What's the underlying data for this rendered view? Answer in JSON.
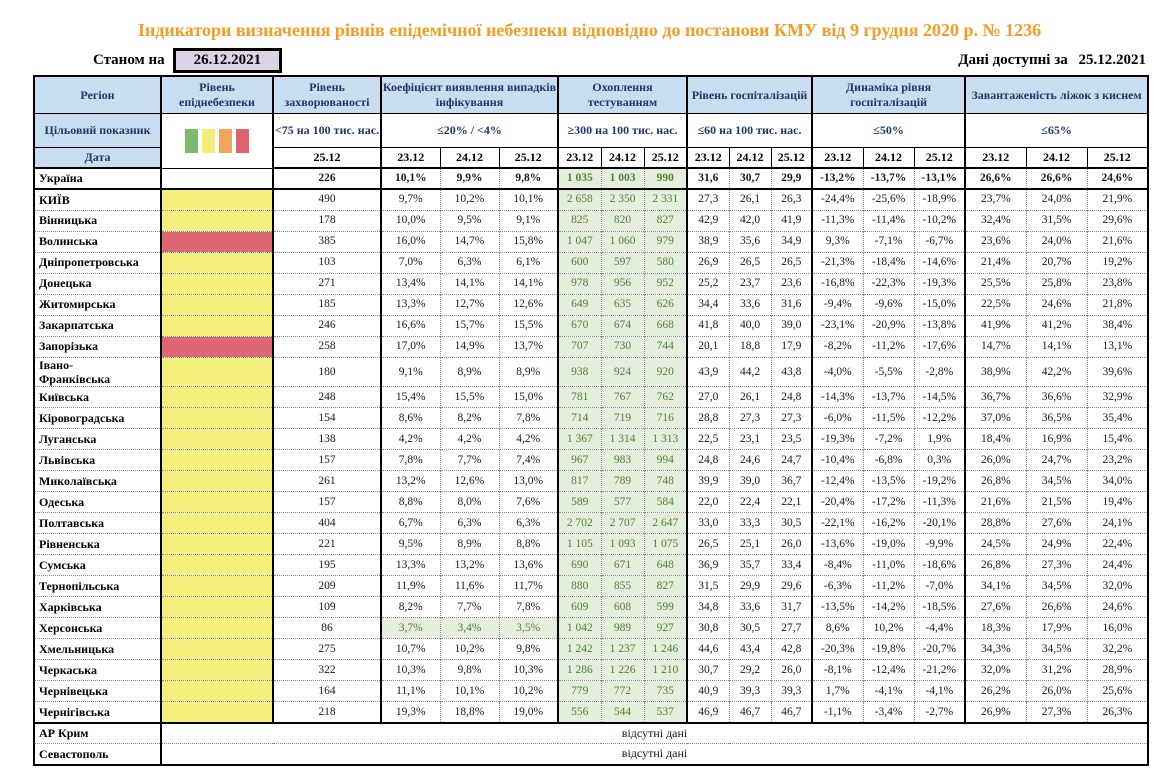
{
  "title": "Індикатори визначення рівнів епідемічної небезпеки відповідно до постанови КМУ від 9 грудня 2020 р. № 1236",
  "as_of": {
    "label": "Станом на",
    "date": "26.12.2021"
  },
  "available": {
    "label": "Дані доступні за",
    "date": "25.12.2021"
  },
  "no_data_text": "відсутні дані",
  "colors": {
    "title_orange": "#F79B22",
    "header_bg": "#c9ddf0",
    "header_text": "#1f3864",
    "asof_bg": "#dcd3e8",
    "yellow": "#f5f07c",
    "red": "#dd6672",
    "green_bg": "#e4eedd",
    "green_text": "#538135",
    "legend": [
      "#7cba6d",
      "#f3ee7a",
      "#f2a45f",
      "#dd636e"
    ]
  },
  "header": {
    "region": "Регіон",
    "danger_level": "Рівень епіднебезпеки",
    "target_row_label": "Цільовий показник",
    "date_row_label": "Дата",
    "groups": [
      {
        "id": "incidence",
        "key": "incidence",
        "label": "Рівень захворюваності",
        "target": "<75 на 100 тис. нас.",
        "dates": [
          "25.12"
        ]
      },
      {
        "id": "detection",
        "key": "detection",
        "label": "Коефіцієнт виявлення випадків інфікування",
        "target": "≤20% / <4%",
        "dates": [
          "23.12",
          "24.12",
          "25.12"
        ]
      },
      {
        "id": "testing",
        "key": "testing",
        "label": "Охоплення тестуванням",
        "target": "≥300 на 100 тис. нас.",
        "dates": [
          "23.12",
          "24.12",
          "25.12"
        ]
      },
      {
        "id": "hosp",
        "key": "hosp",
        "label": "Рівень госпіталізацій",
        "target": "≤60 на 100 тис. нас.",
        "dates": [
          "23.12",
          "24.12",
          "25.12"
        ]
      },
      {
        "id": "hosp-dyn",
        "key": "hosp_dyn",
        "label": "Динаміка рівня госпіталізацій",
        "target": "≤50%",
        "dates": [
          "23.12",
          "24.12",
          "25.12"
        ]
      },
      {
        "id": "oxygen",
        "key": "oxygen",
        "label": "Завантаженість ліжок з киснем",
        "target": "≤65%",
        "dates": [
          "23.12",
          "24.12",
          "25.12"
        ]
      }
    ]
  },
  "rows": [
    {
      "region": "Україна",
      "danger": "none",
      "bold": true,
      "incidence": "226",
      "detection": [
        "10,1%",
        "9,9%",
        "9,8%"
      ],
      "testing": [
        "1 035",
        "1 003",
        "990"
      ],
      "hosp": [
        "31,6",
        "30,7",
        "29,9"
      ],
      "hosp_dyn": [
        "-13,2%",
        "-13,7%",
        "-13,1%"
      ],
      "oxygen": [
        "26,6%",
        "26,6%",
        "24,6%"
      ]
    },
    {
      "region": "КИЇВ",
      "danger": "yellow",
      "incidence": "490",
      "detection": [
        "9,7%",
        "10,2%",
        "10,1%"
      ],
      "testing": [
        "2 658",
        "2 350",
        "2 331"
      ],
      "hosp": [
        "27,3",
        "26,1",
        "26,3"
      ],
      "hosp_dyn": [
        "-24,4%",
        "-25,6%",
        "-18,9%"
      ],
      "oxygen": [
        "23,7%",
        "24,0%",
        "21,9%"
      ]
    },
    {
      "region": "Вінницька",
      "danger": "yellow",
      "incidence": "178",
      "detection": [
        "10,0%",
        "9,5%",
        "9,1%"
      ],
      "testing": [
        "825",
        "820",
        "827"
      ],
      "hosp": [
        "42,9",
        "42,0",
        "41,9"
      ],
      "hosp_dyn": [
        "-11,3%",
        "-11,4%",
        "-10,2%"
      ],
      "oxygen": [
        "32,4%",
        "31,5%",
        "29,6%"
      ]
    },
    {
      "region": "Волинська",
      "danger": "red",
      "incidence": "385",
      "detection": [
        "16,0%",
        "14,7%",
        "15,8%"
      ],
      "testing": [
        "1 047",
        "1 060",
        "979"
      ],
      "hosp": [
        "38,9",
        "35,6",
        "34,9"
      ],
      "hosp_dyn": [
        "9,3%",
        "-7,1%",
        "-6,7%"
      ],
      "oxygen": [
        "23,6%",
        "24,0%",
        "21,6%"
      ]
    },
    {
      "region": "Дніпропетровська",
      "danger": "yellow",
      "incidence": "103",
      "detection": [
        "7,0%",
        "6,3%",
        "6,1%"
      ],
      "testing": [
        "600",
        "597",
        "580"
      ],
      "hosp": [
        "26,9",
        "26,5",
        "26,5"
      ],
      "hosp_dyn": [
        "-21,3%",
        "-18,4%",
        "-14,6%"
      ],
      "oxygen": [
        "21,4%",
        "20,7%",
        "19,2%"
      ]
    },
    {
      "region": "Донецька",
      "danger": "yellow",
      "incidence": "271",
      "detection": [
        "13,4%",
        "14,1%",
        "14,1%"
      ],
      "testing": [
        "978",
        "956",
        "952"
      ],
      "hosp": [
        "25,2",
        "23,7",
        "23,6"
      ],
      "hosp_dyn": [
        "-16,8%",
        "-22,3%",
        "-19,3%"
      ],
      "oxygen": [
        "25,5%",
        "25,8%",
        "23,8%"
      ]
    },
    {
      "region": "Житомирська",
      "danger": "yellow",
      "incidence": "185",
      "detection": [
        "13,3%",
        "12,7%",
        "12,6%"
      ],
      "testing": [
        "649",
        "635",
        "626"
      ],
      "hosp": [
        "34,4",
        "33,6",
        "31,6"
      ],
      "hosp_dyn": [
        "-9,4%",
        "-9,6%",
        "-15,0%"
      ],
      "oxygen": [
        "22,5%",
        "24,6%",
        "21,8%"
      ]
    },
    {
      "region": "Закарпатська",
      "danger": "yellow",
      "incidence": "246",
      "detection": [
        "16,6%",
        "15,7%",
        "15,5%"
      ],
      "testing": [
        "670",
        "674",
        "668"
      ],
      "hosp": [
        "41,8",
        "40,0",
        "39,0"
      ],
      "hosp_dyn": [
        "-23,1%",
        "-20,9%",
        "-13,8%"
      ],
      "oxygen": [
        "41,9%",
        "41,2%",
        "38,4%"
      ]
    },
    {
      "region": "Запорізька",
      "danger": "red",
      "incidence": "258",
      "detection": [
        "17,0%",
        "14,9%",
        "13,7%"
      ],
      "testing": [
        "707",
        "730",
        "744"
      ],
      "hosp": [
        "20,1",
        "18,8",
        "17,9"
      ],
      "hosp_dyn": [
        "-8,2%",
        "-11,2%",
        "-17,6%"
      ],
      "oxygen": [
        "14,7%",
        "14,1%",
        "13,1%"
      ]
    },
    {
      "region": "Івано-\nФранківська",
      "danger": "yellow",
      "incidence": "180",
      "detection": [
        "9,1%",
        "8,9%",
        "8,9%"
      ],
      "testing": [
        "938",
        "924",
        "920"
      ],
      "hosp": [
        "43,9",
        "44,2",
        "43,8"
      ],
      "hosp_dyn": [
        "-4,0%",
        "-5,5%",
        "-2,8%"
      ],
      "oxygen": [
        "38,9%",
        "42,2%",
        "39,6%"
      ]
    },
    {
      "region": "Київська",
      "danger": "yellow",
      "incidence": "248",
      "detection": [
        "15,4%",
        "15,5%",
        "15,0%"
      ],
      "testing": [
        "781",
        "767",
        "762"
      ],
      "hosp": [
        "27,0",
        "26,1",
        "24,8"
      ],
      "hosp_dyn": [
        "-14,3%",
        "-13,7%",
        "-14,5%"
      ],
      "oxygen": [
        "36,7%",
        "36,6%",
        "32,9%"
      ]
    },
    {
      "region": "Кіровоградська",
      "danger": "yellow",
      "incidence": "154",
      "detection": [
        "8,6%",
        "8,2%",
        "7,8%"
      ],
      "testing": [
        "714",
        "719",
        "716"
      ],
      "hosp": [
        "28,8",
        "27,3",
        "27,3"
      ],
      "hosp_dyn": [
        "-6,0%",
        "-11,5%",
        "-12,2%"
      ],
      "oxygen": [
        "37,0%",
        "36,5%",
        "35,4%"
      ]
    },
    {
      "region": "Луганська",
      "danger": "yellow",
      "incidence": "138",
      "detection": [
        "4,2%",
        "4,2%",
        "4,2%"
      ],
      "testing": [
        "1 367",
        "1 314",
        "1 313"
      ],
      "hosp": [
        "22,5",
        "23,1",
        "23,5"
      ],
      "hosp_dyn": [
        "-19,3%",
        "-7,2%",
        "1,9%"
      ],
      "oxygen": [
        "18,4%",
        "16,9%",
        "15,4%"
      ]
    },
    {
      "region": "Львівська",
      "danger": "yellow",
      "incidence": "157",
      "detection": [
        "7,8%",
        "7,7%",
        "7,4%"
      ],
      "testing": [
        "967",
        "983",
        "994"
      ],
      "hosp": [
        "24,8",
        "24,6",
        "24,7"
      ],
      "hosp_dyn": [
        "-10,4%",
        "-6,8%",
        "0,3%"
      ],
      "oxygen": [
        "26,0%",
        "24,7%",
        "23,2%"
      ]
    },
    {
      "region": "Миколаївська",
      "danger": "yellow",
      "incidence": "261",
      "detection": [
        "13,2%",
        "12,6%",
        "13,0%"
      ],
      "testing": [
        "817",
        "789",
        "748"
      ],
      "hosp": [
        "39,9",
        "39,0",
        "36,7"
      ],
      "hosp_dyn": [
        "-12,4%",
        "-13,5%",
        "-19,2%"
      ],
      "oxygen": [
        "26,8%",
        "34,5%",
        "34,0%"
      ]
    },
    {
      "region": "Одеська",
      "danger": "yellow",
      "incidence": "157",
      "detection": [
        "8,8%",
        "8,0%",
        "7,6%"
      ],
      "testing": [
        "589",
        "577",
        "584"
      ],
      "hosp": [
        "22,0",
        "22,4",
        "22,1"
      ],
      "hosp_dyn": [
        "-20,4%",
        "-17,2%",
        "-11,3%"
      ],
      "oxygen": [
        "21,6%",
        "21,5%",
        "19,4%"
      ]
    },
    {
      "region": "Полтавська",
      "danger": "yellow",
      "incidence": "404",
      "detection": [
        "6,7%",
        "6,3%",
        "6,3%"
      ],
      "testing": [
        "2 702",
        "2 707",
        "2 647"
      ],
      "hosp": [
        "33,0",
        "33,3",
        "30,5"
      ],
      "hosp_dyn": [
        "-22,1%",
        "-16,2%",
        "-20,1%"
      ],
      "oxygen": [
        "28,8%",
        "27,6%",
        "24,1%"
      ]
    },
    {
      "region": "Рівненська",
      "danger": "yellow",
      "incidence": "221",
      "detection": [
        "9,5%",
        "8,9%",
        "8,8%"
      ],
      "testing": [
        "1 105",
        "1 093",
        "1 075"
      ],
      "hosp": [
        "26,5",
        "25,1",
        "26,0"
      ],
      "hosp_dyn": [
        "-13,6%",
        "-19,0%",
        "-9,9%"
      ],
      "oxygen": [
        "24,5%",
        "24,9%",
        "22,4%"
      ]
    },
    {
      "region": "Сумська",
      "danger": "yellow",
      "incidence": "195",
      "detection": [
        "13,3%",
        "13,2%",
        "13,6%"
      ],
      "testing": [
        "690",
        "671",
        "648"
      ],
      "hosp": [
        "36,9",
        "35,7",
        "33,4"
      ],
      "hosp_dyn": [
        "-8,4%",
        "-11,0%",
        "-18,6%"
      ],
      "oxygen": [
        "26,8%",
        "27,3%",
        "24,4%"
      ]
    },
    {
      "region": "Тернопільська",
      "danger": "yellow",
      "incidence": "209",
      "detection": [
        "11,9%",
        "11,6%",
        "11,7%"
      ],
      "testing": [
        "880",
        "855",
        "827"
      ],
      "hosp": [
        "31,5",
        "29,9",
        "29,6"
      ],
      "hosp_dyn": [
        "-6,3%",
        "-11,2%",
        "-7,0%"
      ],
      "oxygen": [
        "34,1%",
        "34,5%",
        "32,0%"
      ]
    },
    {
      "region": "Харківська",
      "danger": "yellow",
      "incidence": "109",
      "detection": [
        "8,2%",
        "7,7%",
        "7,8%"
      ],
      "testing": [
        "609",
        "608",
        "599"
      ],
      "hosp": [
        "34,8",
        "33,6",
        "31,7"
      ],
      "hosp_dyn": [
        "-13,5%",
        "-14,2%",
        "-18,5%"
      ],
      "oxygen": [
        "27,6%",
        "26,6%",
        "24,6%"
      ]
    },
    {
      "region": "Херсонська",
      "danger": "yellow",
      "detection_green": true,
      "incidence": "86",
      "detection": [
        "3,7%",
        "3,4%",
        "3,5%"
      ],
      "testing": [
        "1 042",
        "989",
        "927"
      ],
      "hosp": [
        "30,8",
        "30,5",
        "27,7"
      ],
      "hosp_dyn": [
        "8,6%",
        "10,2%",
        "-4,4%"
      ],
      "oxygen": [
        "18,3%",
        "17,9%",
        "16,0%"
      ]
    },
    {
      "region": "Хмельницька",
      "danger": "yellow",
      "incidence": "275",
      "detection": [
        "10,7%",
        "10,2%",
        "9,8%"
      ],
      "testing": [
        "1 242",
        "1 237",
        "1 246"
      ],
      "hosp": [
        "44,6",
        "43,4",
        "42,8"
      ],
      "hosp_dyn": [
        "-20,3%",
        "-19,8%",
        "-20,7%"
      ],
      "oxygen": [
        "34,3%",
        "34,5%",
        "32,2%"
      ]
    },
    {
      "region": "Черкаська",
      "danger": "yellow",
      "incidence": "322",
      "detection": [
        "10,3%",
        "9,8%",
        "10,3%"
      ],
      "testing": [
        "1 286",
        "1 226",
        "1 210"
      ],
      "hosp": [
        "30,7",
        "29,2",
        "26,0"
      ],
      "hosp_dyn": [
        "-8,1%",
        "-12,4%",
        "-21,2%"
      ],
      "oxygen": [
        "32,0%",
        "31,2%",
        "28,9%"
      ]
    },
    {
      "region": "Чернівецька",
      "danger": "yellow",
      "incidence": "164",
      "detection": [
        "11,1%",
        "10,1%",
        "10,2%"
      ],
      "testing": [
        "779",
        "772",
        "735"
      ],
      "hosp": [
        "40,9",
        "39,3",
        "39,3"
      ],
      "hosp_dyn": [
        "1,7%",
        "-4,1%",
        "-4,1%"
      ],
      "oxygen": [
        "26,2%",
        "26,0%",
        "25,6%"
      ]
    },
    {
      "region": "Чернігівська",
      "danger": "yellow",
      "incidence": "218",
      "detection": [
        "19,3%",
        "18,8%",
        "19,0%"
      ],
      "testing": [
        "556",
        "544",
        "537"
      ],
      "hosp": [
        "46,9",
        "46,7",
        "46,7"
      ],
      "hosp_dyn": [
        "-1,1%",
        "-3,4%",
        "-2,7%"
      ],
      "oxygen": [
        "26,9%",
        "27,3%",
        "26,3%"
      ]
    },
    {
      "region": "АР Крим",
      "no_data": true,
      "thick_top": true
    },
    {
      "region": "Севастополь",
      "no_data": true
    }
  ]
}
